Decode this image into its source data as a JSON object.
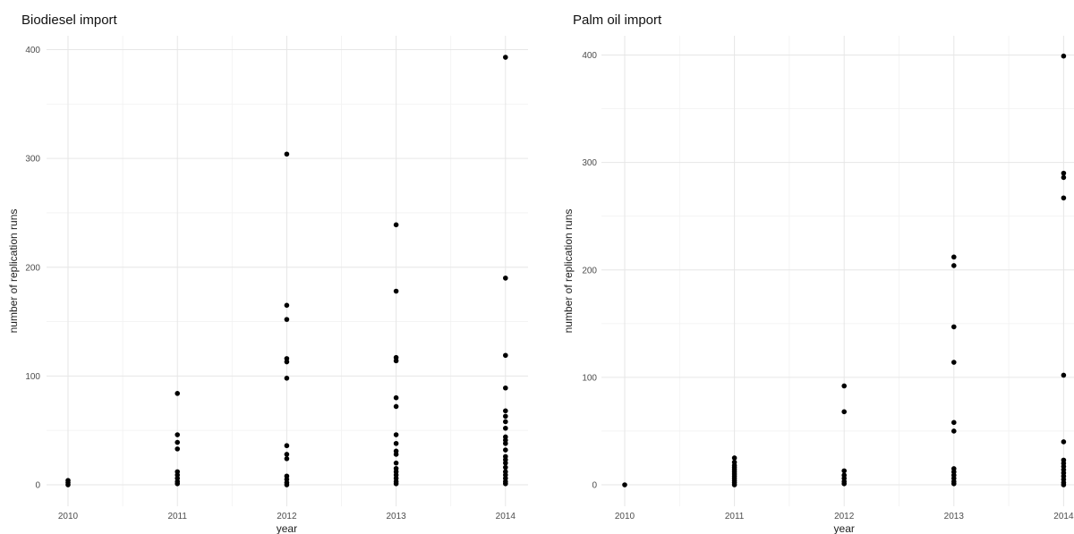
{
  "chart_data": [
    {
      "type": "scatter",
      "title": "Biodiesel import",
      "xlabel": "year",
      "ylabel": "number of replication runs",
      "x_ticks": [
        "2010",
        "2011",
        "2012",
        "2013",
        "2014"
      ],
      "y_ticks": [
        "0",
        "100",
        "200",
        "300",
        "400"
      ],
      "ylim": [
        0,
        400
      ],
      "grid": true,
      "points": [
        {
          "x": "2010",
          "y": 0
        },
        {
          "x": "2010",
          "y": 2
        },
        {
          "x": "2010",
          "y": 4
        },
        {
          "x": "2011",
          "y": 84
        },
        {
          "x": "2011",
          "y": 46
        },
        {
          "x": "2011",
          "y": 39
        },
        {
          "x": "2011",
          "y": 33
        },
        {
          "x": "2011",
          "y": 12
        },
        {
          "x": "2011",
          "y": 9
        },
        {
          "x": "2011",
          "y": 6
        },
        {
          "x": "2011",
          "y": 3
        },
        {
          "x": "2011",
          "y": 1
        },
        {
          "x": "2012",
          "y": 304
        },
        {
          "x": "2012",
          "y": 165
        },
        {
          "x": "2012",
          "y": 152
        },
        {
          "x": "2012",
          "y": 116
        },
        {
          "x": "2012",
          "y": 113
        },
        {
          "x": "2012",
          "y": 98
        },
        {
          "x": "2012",
          "y": 36
        },
        {
          "x": "2012",
          "y": 28
        },
        {
          "x": "2012",
          "y": 24
        },
        {
          "x": "2012",
          "y": 8
        },
        {
          "x": "2012",
          "y": 5
        },
        {
          "x": "2012",
          "y": 2
        },
        {
          "x": "2012",
          "y": 0
        },
        {
          "x": "2013",
          "y": 239
        },
        {
          "x": "2013",
          "y": 178
        },
        {
          "x": "2013",
          "y": 117
        },
        {
          "x": "2013",
          "y": 114
        },
        {
          "x": "2013",
          "y": 80
        },
        {
          "x": "2013",
          "y": 72
        },
        {
          "x": "2013",
          "y": 46
        },
        {
          "x": "2013",
          "y": 38
        },
        {
          "x": "2013",
          "y": 31
        },
        {
          "x": "2013",
          "y": 28
        },
        {
          "x": "2013",
          "y": 20
        },
        {
          "x": "2013",
          "y": 15
        },
        {
          "x": "2013",
          "y": 12
        },
        {
          "x": "2013",
          "y": 9
        },
        {
          "x": "2013",
          "y": 6
        },
        {
          "x": "2013",
          "y": 3
        },
        {
          "x": "2013",
          "y": 1
        },
        {
          "x": "2014",
          "y": 393
        },
        {
          "x": "2014",
          "y": 190
        },
        {
          "x": "2014",
          "y": 119
        },
        {
          "x": "2014",
          "y": 89
        },
        {
          "x": "2014",
          "y": 68
        },
        {
          "x": "2014",
          "y": 63
        },
        {
          "x": "2014",
          "y": 58
        },
        {
          "x": "2014",
          "y": 52
        },
        {
          "x": "2014",
          "y": 44
        },
        {
          "x": "2014",
          "y": 41
        },
        {
          "x": "2014",
          "y": 38
        },
        {
          "x": "2014",
          "y": 32
        },
        {
          "x": "2014",
          "y": 26
        },
        {
          "x": "2014",
          "y": 23
        },
        {
          "x": "2014",
          "y": 20
        },
        {
          "x": "2014",
          "y": 16
        },
        {
          "x": "2014",
          "y": 12
        },
        {
          "x": "2014",
          "y": 9
        },
        {
          "x": "2014",
          "y": 6
        },
        {
          "x": "2014",
          "y": 3
        },
        {
          "x": "2014",
          "y": 1
        }
      ]
    },
    {
      "type": "scatter",
      "title": "Palm oil import",
      "xlabel": "year",
      "ylabel": "number of replication runs",
      "x_ticks": [
        "2010",
        "2011",
        "2012",
        "2013",
        "2014"
      ],
      "y_ticks": [
        "0",
        "100",
        "200",
        "300",
        "400"
      ],
      "ylim": [
        0,
        400
      ],
      "grid": true,
      "points": [
        {
          "x": "2010",
          "y": 0
        },
        {
          "x": "2011",
          "y": 25
        },
        {
          "x": "2011",
          "y": 21
        },
        {
          "x": "2011",
          "y": 18
        },
        {
          "x": "2011",
          "y": 16
        },
        {
          "x": "2011",
          "y": 14
        },
        {
          "x": "2011",
          "y": 12
        },
        {
          "x": "2011",
          "y": 10
        },
        {
          "x": "2011",
          "y": 8
        },
        {
          "x": "2011",
          "y": 6
        },
        {
          "x": "2011",
          "y": 4
        },
        {
          "x": "2011",
          "y": 2
        },
        {
          "x": "2011",
          "y": 0
        },
        {
          "x": "2012",
          "y": 92
        },
        {
          "x": "2012",
          "y": 68
        },
        {
          "x": "2012",
          "y": 13
        },
        {
          "x": "2012",
          "y": 9
        },
        {
          "x": "2012",
          "y": 6
        },
        {
          "x": "2012",
          "y": 3
        },
        {
          "x": "2012",
          "y": 1
        },
        {
          "x": "2013",
          "y": 212
        },
        {
          "x": "2013",
          "y": 204
        },
        {
          "x": "2013",
          "y": 147
        },
        {
          "x": "2013",
          "y": 114
        },
        {
          "x": "2013",
          "y": 58
        },
        {
          "x": "2013",
          "y": 50
        },
        {
          "x": "2013",
          "y": 15
        },
        {
          "x": "2013",
          "y": 12
        },
        {
          "x": "2013",
          "y": 9
        },
        {
          "x": "2013",
          "y": 6
        },
        {
          "x": "2013",
          "y": 3
        },
        {
          "x": "2013",
          "y": 1
        },
        {
          "x": "2014",
          "y": 399
        },
        {
          "x": "2014",
          "y": 290
        },
        {
          "x": "2014",
          "y": 286
        },
        {
          "x": "2014",
          "y": 267
        },
        {
          "x": "2014",
          "y": 102
        },
        {
          "x": "2014",
          "y": 40
        },
        {
          "x": "2014",
          "y": 23
        },
        {
          "x": "2014",
          "y": 20
        },
        {
          "x": "2014",
          "y": 17
        },
        {
          "x": "2014",
          "y": 14
        },
        {
          "x": "2014",
          "y": 11
        },
        {
          "x": "2014",
          "y": 8
        },
        {
          "x": "2014",
          "y": 5
        },
        {
          "x": "2014",
          "y": 2
        },
        {
          "x": "2014",
          "y": 0
        }
      ]
    }
  ]
}
